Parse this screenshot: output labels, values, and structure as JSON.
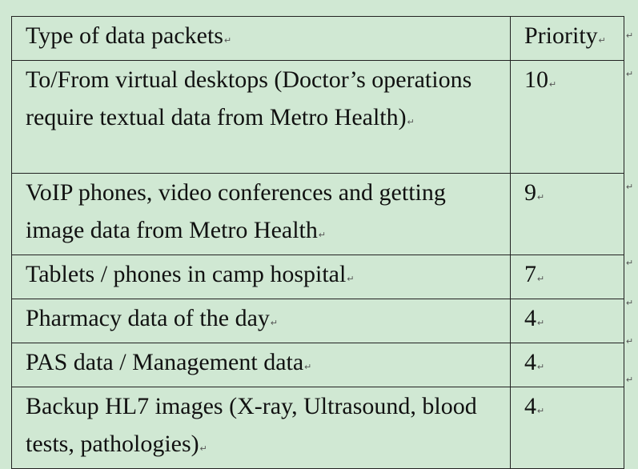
{
  "table": {
    "header": [
      "Type of data packets",
      "Priority"
    ],
    "rows": [
      [
        "To/From virtual desktops (Doctor’s operations require textual data from Metro Health)",
        10
      ],
      [
        "VoIP phones, video conferences and getting image data from Metro Health",
        9
      ],
      [
        "Tablets / phones in camp hospital",
        7
      ],
      [
        "Pharmacy data of the day",
        4
      ],
      [
        "PAS data / Management data",
        4
      ],
      [
        "Backup HL7 images (X-ray, Ultrasound, blood tests, pathologies)",
        4
      ]
    ]
  }
}
